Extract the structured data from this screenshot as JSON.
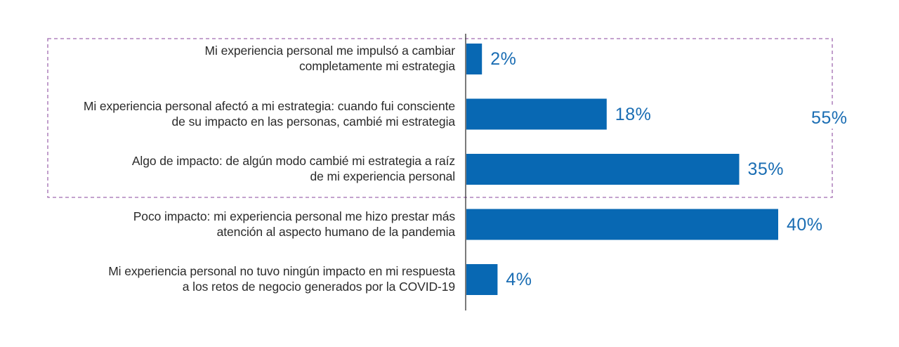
{
  "chart_data": {
    "type": "bar",
    "orientation": "horizontal",
    "title": "",
    "xlabel": "",
    "ylabel": "",
    "xlim": [
      0,
      40
    ],
    "grid": false,
    "value_suffix": "%",
    "categories": [
      "Mi experiencia personal me impulsó a cambiar completamente mi estrategia",
      "Mi experiencia personal afectó a mi estrategia: cuando fui consciente de su impacto en las personas, cambié mi estrategia",
      "Algo de impacto: de algún modo cambié mi estrategia a raíz de mi experiencia personal",
      "Poco impacto: mi experiencia personal me hizo prestar más atención al aspecto humano de la pandemia",
      "Mi experiencia personal no tuvo ningún impacto en mi respuesta a los retos de negocio generados por la COVID-19"
    ],
    "category_lines": [
      [
        "Mi experiencia personal me impulsó a cambiar",
        "completamente mi estrategia"
      ],
      [
        "Mi experiencia personal afectó a mi estrategia: cuando fui consciente",
        "de su impacto en las personas, cambié mi estrategia"
      ],
      [
        "Algo de impacto: de algún modo cambié mi estrategia a raíz",
        "de mi experiencia personal"
      ],
      [
        "Poco impacto: mi experiencia personal me hizo prestar más",
        "atención al aspecto humano de la pandemia"
      ],
      [
        "Mi experiencia personal no tuvo ningún impacto en mi respuesta",
        "a los retos de negocio generados por la COVID-19"
      ]
    ],
    "values": [
      2,
      18,
      35,
      40,
      4
    ],
    "value_labels": [
      "2%",
      "18%",
      "35%",
      "40%",
      "4%"
    ],
    "annotations": [
      {
        "type": "group-bracket",
        "style": "dashed-box",
        "covers_categories": [
          0,
          1,
          2
        ],
        "label": "55%",
        "value": 55
      }
    ],
    "colors": {
      "bar": "#0868b3",
      "value_text": "#1a6db3",
      "label_text": "#2b2b2b",
      "axis": "#333333",
      "group_box": "#a06bb0"
    }
  }
}
